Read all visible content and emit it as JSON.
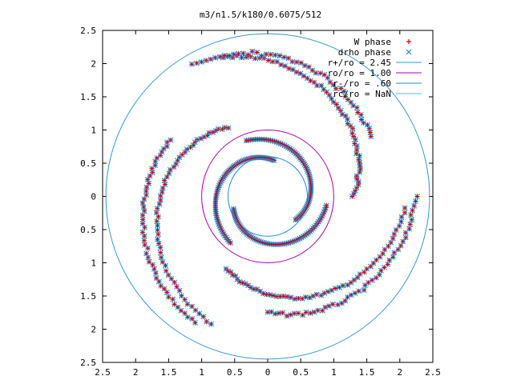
{
  "chart_data": {
    "type": "scatter",
    "title": "m3/n1.5/k180/0.6075/512",
    "xlim": [
      -2.5,
      2.5
    ],
    "ylim": [
      -2.5,
      2.5
    ],
    "x_ticks": [
      -2.5,
      -2,
      -1.5,
      -1,
      -0.5,
      0,
      0.5,
      1,
      1.5,
      2,
      2.5
    ],
    "y_ticks": [
      -2.5,
      -2,
      -1.5,
      -1,
      -0.5,
      0,
      0.5,
      1,
      1.5,
      2,
      2.5
    ],
    "x_tick_labels": [
      "2.5",
      "2",
      "1.5",
      "1",
      "0.5",
      "0",
      "0.5",
      "1",
      "1.5",
      "2",
      "2.5"
    ],
    "y_tick_labels": [
      "2.5",
      "2",
      "1.5",
      "1",
      "0.5",
      "0",
      "0.5",
      "1",
      "1.5",
      "2",
      "2.5"
    ],
    "grid": false,
    "legend_position": "top-right",
    "series": [
      {
        "name": "W phase",
        "kind": "points",
        "marker": "plus",
        "color": "#cc0000"
      },
      {
        "name": "drho phase",
        "kind": "points",
        "marker": "cross",
        "color": "#1e8fe0"
      },
      {
        "name": "r+/ro = 2.45",
        "kind": "circle",
        "radius": 2.45,
        "color": "#3399cc"
      },
      {
        "name": "ro/ro = 1.00",
        "kind": "circle",
        "radius": 1.0,
        "color": "#aa00aa"
      },
      {
        "name": "r-/ro = .60",
        "kind": "circle",
        "radius": 0.6,
        "color": "#2288cc"
      },
      {
        "name": "rc/ro = NaN",
        "kind": "circle",
        "radius": null,
        "color": "#33cccc"
      }
    ],
    "arms": [
      {
        "start_r": 0.55,
        "start_angle": 200,
        "turns": 0.42,
        "growth": 0.35,
        "n": 70,
        "jitter": 0.0
      },
      {
        "start_r": 0.55,
        "start_angle": 80,
        "turns": 0.42,
        "growth": 0.35,
        "n": 70,
        "jitter": 0.0
      },
      {
        "start_r": 0.55,
        "start_angle": 320,
        "turns": 0.42,
        "growth": 0.35,
        "n": 70,
        "jitter": 0.0
      },
      {
        "start_r": 1.2,
        "start_angle": 120,
        "turns": 0.35,
        "growth": 0.9,
        "n": 60,
        "jitter": 0.04
      },
      {
        "start_r": 1.25,
        "start_angle": 240,
        "turns": 0.32,
        "growth": 0.85,
        "n": 60,
        "jitter": 0.04
      },
      {
        "start_r": 1.3,
        "start_angle": 0,
        "turns": 0.3,
        "growth": 0.9,
        "n": 60,
        "jitter": 0.05
      },
      {
        "start_r": 1.7,
        "start_angle": 150,
        "turns": 0.25,
        "growth": 0.5,
        "n": 50,
        "jitter": 0.05
      },
      {
        "start_r": 1.75,
        "start_angle": 270,
        "turns": 0.25,
        "growth": 0.5,
        "n": 50,
        "jitter": 0.05
      },
      {
        "start_r": 1.8,
        "start_angle": 30,
        "turns": 0.25,
        "growth": 0.5,
        "n": 50,
        "jitter": 0.06
      }
    ]
  }
}
